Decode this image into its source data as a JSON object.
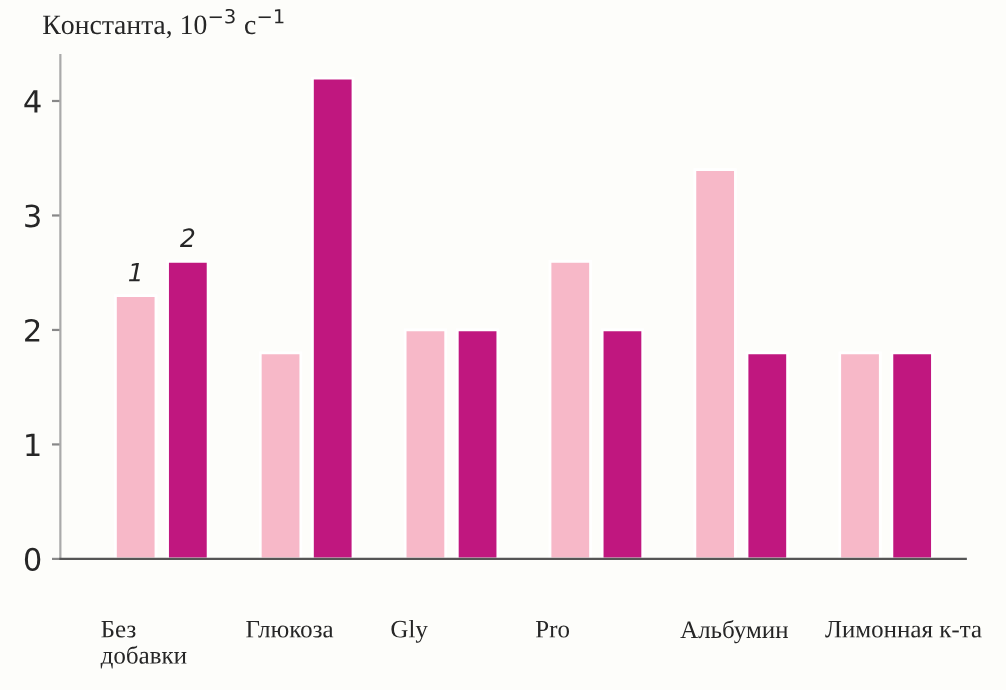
{
  "chart_data": {
    "type": "bar",
    "ylabel": "Константа, 10$^{−3}$ с$^{−1}$",
    "categories": [
      "Без\nдобавки",
      "Глюкоза",
      "Gly",
      "Pro",
      "Альбумин",
      "Лимонная к-та"
    ],
    "series": [
      {
        "name": "1",
        "color": "#f7b8c8",
        "values": [
          2.3,
          1.8,
          2.0,
          2.6,
          3.4,
          1.8
        ]
      },
      {
        "name": "2",
        "color": "#c0177f",
        "values": [
          2.6,
          4.2,
          2.0,
          2.0,
          1.8,
          1.8
        ]
      }
    ],
    "ylim": [
      0,
      4.4
    ],
    "yticks": [
      0,
      1,
      2,
      3,
      4
    ],
    "grid": false,
    "legend": false
  }
}
